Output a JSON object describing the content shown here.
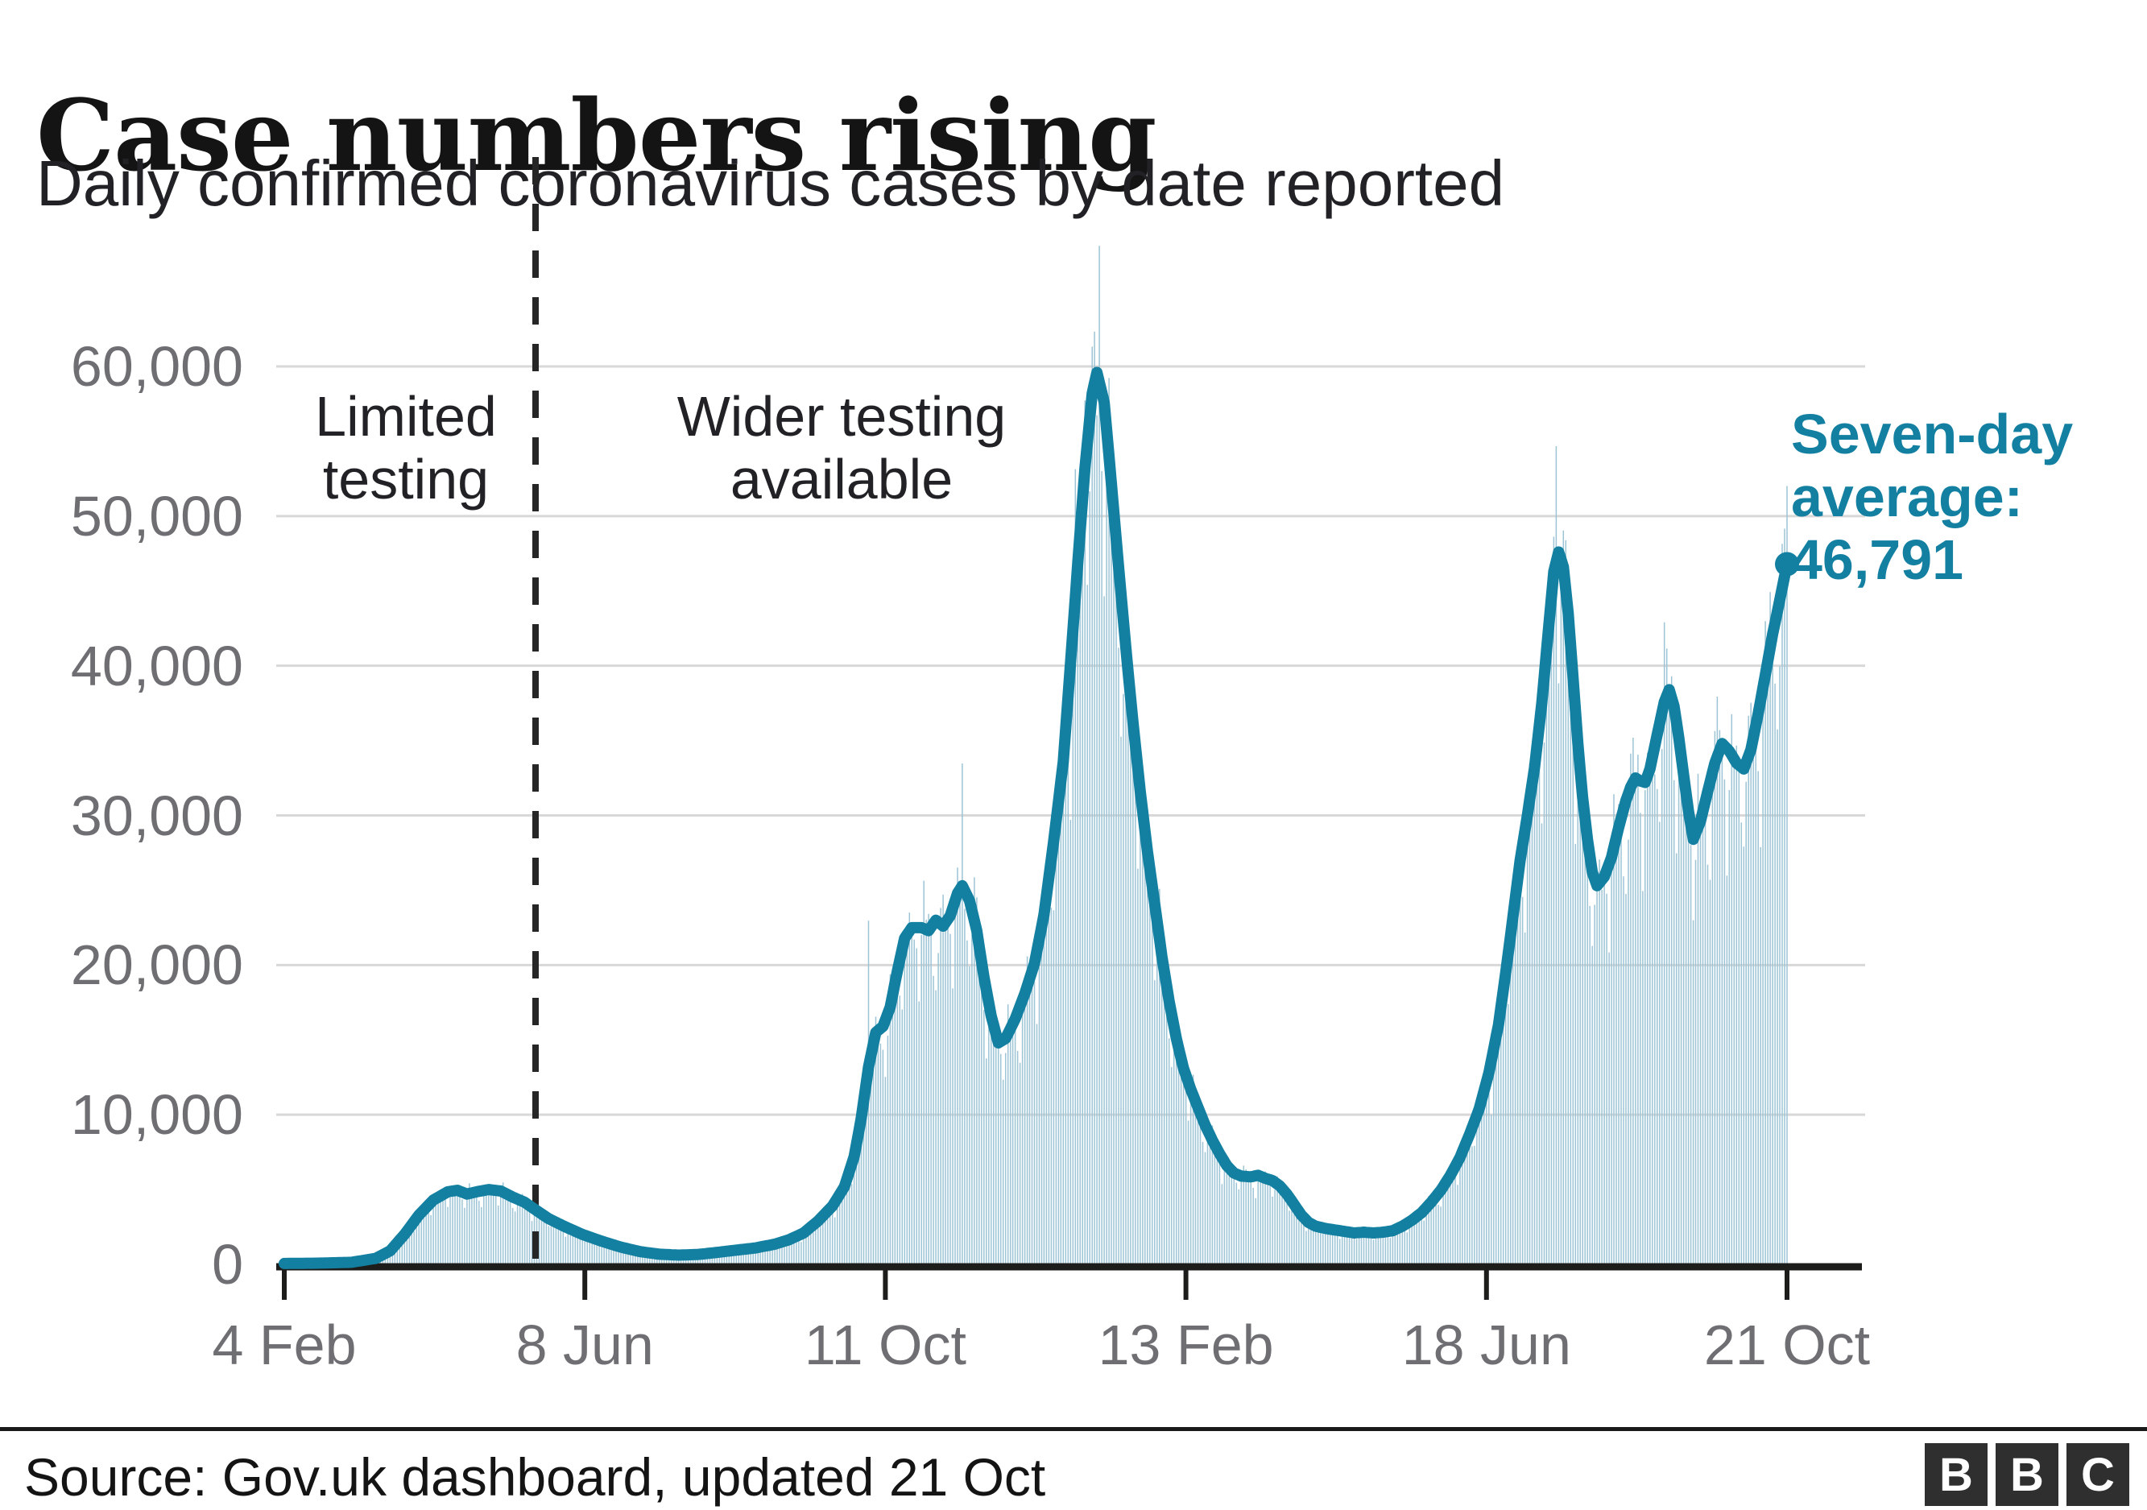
{
  "header": {
    "title": "Case numbers rising",
    "subtitle": "Daily confirmed coronavirus cases by date reported"
  },
  "footer": {
    "source": "Source: Gov.uk dashboard, updated 21 Oct",
    "logo_letters": [
      "B",
      "B",
      "C"
    ]
  },
  "chart_data": {
    "type": "bar+line",
    "title": "Case numbers rising",
    "subtitle": "Daily confirmed coronavirus cases by date reported",
    "legend_position": "none",
    "grid": "horizontal",
    "x_axis": {
      "total_days": 625,
      "ticks": [
        {
          "day": 0,
          "label": "4 Feb"
        },
        {
          "day": 125,
          "label": "8 Jun"
        },
        {
          "day": 250,
          "label": "11 Oct"
        },
        {
          "day": 375,
          "label": "13 Feb"
        },
        {
          "day": 500,
          "label": "18 Jun"
        },
        {
          "day": 625,
          "label": "21 Oct"
        }
      ]
    },
    "y_axis": {
      "plot_max": 68500,
      "ticks": [
        {
          "value": 0,
          "label": "0"
        },
        {
          "value": 10000,
          "label": "10,000"
        },
        {
          "value": 20000,
          "label": "20,000"
        },
        {
          "value": 30000,
          "label": "30,000"
        },
        {
          "value": 40000,
          "label": "40,000"
        },
        {
          "value": 50000,
          "label": "50,000"
        },
        {
          "value": 60000,
          "label": "60,000"
        }
      ]
    },
    "divider": {
      "day": 104.5,
      "left_label_lines": [
        "Limited",
        "testing"
      ],
      "right_label_lines": [
        "Wider testing",
        "available"
      ]
    },
    "endpoint_annotation": {
      "lines": [
        "Seven-day",
        "average:",
        "46,791"
      ],
      "value": 46791,
      "day": 625
    },
    "series": [
      {
        "name": "seven-day-average",
        "style": "line",
        "points": [
          [
            0,
            60
          ],
          [
            14,
            80
          ],
          [
            28,
            140
          ],
          [
            38,
            400
          ],
          [
            44,
            900
          ],
          [
            50,
            2000
          ],
          [
            56,
            3300
          ],
          [
            62,
            4300
          ],
          [
            68,
            4850
          ],
          [
            72,
            4950
          ],
          [
            76,
            4700
          ],
          [
            80,
            4850
          ],
          [
            85,
            5000
          ],
          [
            90,
            4900
          ],
          [
            95,
            4500
          ],
          [
            100,
            4150
          ],
          [
            104,
            3700
          ],
          [
            110,
            3050
          ],
          [
            117,
            2500
          ],
          [
            124,
            2000
          ],
          [
            132,
            1550
          ],
          [
            140,
            1150
          ],
          [
            148,
            850
          ],
          [
            156,
            680
          ],
          [
            164,
            620
          ],
          [
            172,
            660
          ],
          [
            180,
            800
          ],
          [
            188,
            950
          ],
          [
            196,
            1100
          ],
          [
            204,
            1350
          ],
          [
            210,
            1650
          ],
          [
            216,
            2100
          ],
          [
            222,
            2900
          ],
          [
            228,
            3900
          ],
          [
            233,
            5200
          ],
          [
            237,
            7200
          ],
          [
            240,
            9800
          ],
          [
            243,
            13200
          ],
          [
            246,
            15500
          ],
          [
            249,
            15900
          ],
          [
            252,
            17200
          ],
          [
            255,
            19600
          ],
          [
            258,
            21800
          ],
          [
            261,
            22500
          ],
          [
            265,
            22500
          ],
          [
            268,
            22300
          ],
          [
            271,
            23000
          ],
          [
            274,
            22600
          ],
          [
            277,
            23300
          ],
          [
            280,
            24800
          ],
          [
            282,
            25300
          ],
          [
            285,
            24300
          ],
          [
            288,
            22300
          ],
          [
            291,
            19200
          ],
          [
            294,
            16600
          ],
          [
            297,
            14800
          ],
          [
            300,
            15100
          ],
          [
            304,
            16400
          ],
          [
            308,
            18100
          ],
          [
            312,
            20100
          ],
          [
            316,
            23400
          ],
          [
            320,
            28300
          ],
          [
            324,
            33600
          ],
          [
            327,
            40200
          ],
          [
            330,
            46800
          ],
          [
            333,
            53200
          ],
          [
            336,
            58200
          ],
          [
            338,
            59600
          ],
          [
            341,
            57600
          ],
          [
            344,
            52200
          ],
          [
            347,
            46600
          ],
          [
            350,
            41200
          ],
          [
            353,
            36200
          ],
          [
            356,
            31600
          ],
          [
            359,
            27600
          ],
          [
            362,
            24100
          ],
          [
            365,
            20600
          ],
          [
            368,
            17600
          ],
          [
            371,
            15100
          ],
          [
            374,
            13100
          ],
          [
            377,
            11700
          ],
          [
            380,
            10500
          ],
          [
            383,
            9300
          ],
          [
            386,
            8300
          ],
          [
            389,
            7400
          ],
          [
            392,
            6600
          ],
          [
            395,
            6100
          ],
          [
            398,
            5900
          ],
          [
            402,
            5850
          ],
          [
            405,
            5950
          ],
          [
            408,
            5750
          ],
          [
            411,
            5600
          ],
          [
            414,
            5250
          ],
          [
            417,
            4700
          ],
          [
            420,
            4000
          ],
          [
            423,
            3300
          ],
          [
            426,
            2800
          ],
          [
            429,
            2550
          ],
          [
            433,
            2400
          ],
          [
            437,
            2300
          ],
          [
            441,
            2200
          ],
          [
            445,
            2100
          ],
          [
            449,
            2150
          ],
          [
            453,
            2100
          ],
          [
            457,
            2150
          ],
          [
            461,
            2250
          ],
          [
            465,
            2550
          ],
          [
            469,
            2950
          ],
          [
            473,
            3450
          ],
          [
            477,
            4150
          ],
          [
            481,
            4950
          ],
          [
            485,
            5950
          ],
          [
            489,
            7150
          ],
          [
            493,
            8700
          ],
          [
            497,
            10400
          ],
          [
            501,
            12800
          ],
          [
            505,
            16000
          ],
          [
            508,
            19500
          ],
          [
            511,
            23200
          ],
          [
            514,
            27000
          ],
          [
            517,
            30000
          ],
          [
            520,
            33200
          ],
          [
            523,
            37500
          ],
          [
            526,
            42800
          ],
          [
            528,
            46300
          ],
          [
            530,
            47600
          ],
          [
            532,
            46600
          ],
          [
            534,
            43500
          ],
          [
            536,
            39200
          ],
          [
            538,
            34800
          ],
          [
            540,
            31200
          ],
          [
            542,
            28400
          ],
          [
            544,
            26200
          ],
          [
            546,
            25300
          ],
          [
            549,
            25900
          ],
          [
            552,
            27200
          ],
          [
            555,
            29200
          ],
          [
            558,
            31000
          ],
          [
            560,
            31900
          ],
          [
            562,
            32500
          ],
          [
            564,
            32300
          ],
          [
            566,
            32200
          ],
          [
            568,
            33100
          ],
          [
            571,
            35400
          ],
          [
            574,
            37600
          ],
          [
            576,
            38400
          ],
          [
            578,
            37300
          ],
          [
            580,
            35200
          ],
          [
            582,
            32700
          ],
          [
            584,
            30300
          ],
          [
            586,
            28400
          ],
          [
            589,
            29600
          ],
          [
            592,
            31600
          ],
          [
            595,
            33500
          ],
          [
            598,
            34800
          ],
          [
            601,
            34300
          ],
          [
            604,
            33500
          ],
          [
            607,
            33100
          ],
          [
            610,
            34400
          ],
          [
            613,
            36800
          ],
          [
            616,
            39400
          ],
          [
            619,
            42100
          ],
          [
            622,
            44400
          ],
          [
            625,
            46791
          ]
        ]
      },
      {
        "name": "daily-cases-bars",
        "style": "bar",
        "derivation": "daily values approximated from seven-day average with weekday reporting variation",
        "weekday_factors": [
          1.08,
          1.05,
          1.02,
          1.0,
          0.9,
          0.79,
          0.95
        ],
        "wiggle": [
          0.04,
          2.3,
          0.03,
          0.57
        ],
        "max_value": 68100,
        "outliers": [
          [
            243,
            22961
          ],
          [
            282,
            33470
          ],
          [
            329,
            53135
          ],
          [
            333,
            57725
          ],
          [
            337,
            62322
          ],
          [
            339,
            68053
          ],
          [
            529,
            54674
          ],
          [
            624,
            49156
          ],
          [
            625,
            52009
          ]
        ]
      }
    ],
    "colors": {
      "bar": "#9CC4D5",
      "line": "#1380A1",
      "grid": "#D8D8D8",
      "axis": "#1d1d1b",
      "divider": "#262626",
      "tick_text": "#6E6E73",
      "annotation_text": "#222226",
      "endpoint_text": "#1380A1"
    }
  }
}
